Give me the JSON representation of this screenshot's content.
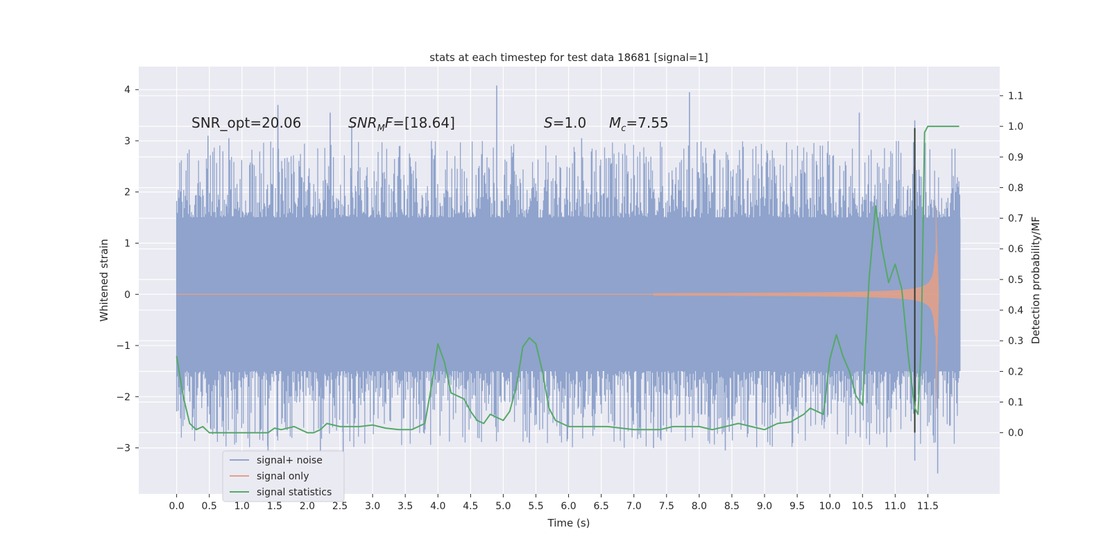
{
  "chart_data": {
    "type": "line",
    "title": "stats at each timestep for test data 18681 [signal=1]",
    "xlabel": "Time (s)",
    "ylabel": "Whitened strain",
    "y2label": "Detection probability/MF",
    "xlim": [
      -0.58,
      12.6
    ],
    "ylim": [
      -3.9,
      4.45
    ],
    "y2lim": [
      -0.2,
      1.195
    ],
    "x_ticks": [
      "0.0",
      "0.5",
      "1.0",
      "1.5",
      "2.0",
      "2.5",
      "3.0",
      "3.5",
      "4.0",
      "4.5",
      "5.0",
      "5.5",
      "6.0",
      "6.5",
      "7.0",
      "7.5",
      "8.0",
      "8.5",
      "9.0",
      "9.5",
      "10.0",
      "10.5",
      "11.0",
      "11.5"
    ],
    "y_ticks": [
      "4",
      "3",
      "2",
      "1",
      "0",
      "−1",
      "−2",
      "−3"
    ],
    "y2_ticks": [
      "1.1",
      "1.0",
      "0.9",
      "0.8",
      "0.7",
      "0.6",
      "0.5",
      "0.4",
      "0.3",
      "0.2",
      "0.1",
      "0.0"
    ],
    "grid": true,
    "legend_position": "lower-left",
    "annotations": {
      "snr_opt": "SNR_opt=20.06",
      "snr_mf": "=[18.64]",
      "s": "=1.0",
      "mc": "=7.55"
    },
    "series": [
      {
        "name": "signal+ noise",
        "color": "#8fa3cc",
        "axis": "left",
        "kind": "noise-band",
        "duration": 12.0,
        "envelope_high": 1.5,
        "envelope_low": -1.5,
        "spikes": [
          {
            "x": 0.48,
            "y": 3.1
          },
          {
            "x": 0.8,
            "y": 3.05
          },
          {
            "x": 1.55,
            "y": 3.7
          },
          {
            "x": 2.35,
            "y": 3.55
          },
          {
            "x": 2.68,
            "y": 3.3
          },
          {
            "x": 4.9,
            "y": 4.08
          },
          {
            "x": 6.2,
            "y": 3.05
          },
          {
            "x": 7.85,
            "y": 3.95
          },
          {
            "x": 10.45,
            "y": 3.55
          },
          {
            "x": 11.3,
            "y": 3.4
          },
          {
            "x": 1.4,
            "y": -3.05
          },
          {
            "x": 2.2,
            "y": -3.25
          },
          {
            "x": 2.55,
            "y": -3.1
          },
          {
            "x": 5.4,
            "y": -2.9
          },
          {
            "x": 7.3,
            "y": -3.0
          },
          {
            "x": 8.4,
            "y": -3.05
          },
          {
            "x": 11.3,
            "y": -3.25
          },
          {
            "x": 11.65,
            "y": -3.5
          }
        ]
      },
      {
        "name": "signal only",
        "color": "#e1a08a",
        "axis": "left",
        "kind": "chirp",
        "t_start": 7.3,
        "t_merger": 11.62,
        "peak_amplitude": 1.9,
        "end_time": 11.67
      },
      {
        "name": "signal statistics",
        "color": "#55a868",
        "axis": "right",
        "kind": "line",
        "x": [
          0.0,
          0.1,
          0.2,
          0.3,
          0.4,
          0.5,
          0.6,
          0.8,
          1.0,
          1.2,
          1.4,
          1.5,
          1.6,
          1.8,
          1.9,
          2.0,
          2.1,
          2.2,
          2.3,
          2.4,
          2.5,
          2.6,
          2.8,
          3.0,
          3.2,
          3.4,
          3.6,
          3.8,
          3.9,
          4.0,
          4.1,
          4.2,
          4.3,
          4.4,
          4.5,
          4.6,
          4.7,
          4.8,
          4.9,
          5.0,
          5.1,
          5.2,
          5.3,
          5.4,
          5.5,
          5.6,
          5.7,
          5.8,
          6.0,
          6.2,
          6.4,
          6.6,
          6.8,
          7.0,
          7.2,
          7.4,
          7.6,
          7.8,
          8.0,
          8.2,
          8.4,
          8.6,
          8.8,
          9.0,
          9.2,
          9.4,
          9.6,
          9.7,
          9.8,
          9.9,
          10.0,
          10.1,
          10.2,
          10.3,
          10.4,
          10.5,
          10.6,
          10.7,
          10.8,
          10.9,
          11.0,
          11.1,
          11.2,
          11.3,
          11.35,
          11.4,
          11.45,
          11.5,
          11.6,
          11.7,
          11.8,
          11.9,
          11.98
        ],
        "values": [
          0.25,
          0.12,
          0.03,
          0.01,
          0.02,
          0.0,
          0.0,
          0.0,
          0.0,
          0.0,
          0.0,
          0.015,
          0.01,
          0.02,
          0.01,
          0.0,
          0.0,
          0.01,
          0.03,
          0.025,
          0.02,
          0.02,
          0.02,
          0.025,
          0.015,
          0.01,
          0.01,
          0.03,
          0.15,
          0.29,
          0.23,
          0.13,
          0.12,
          0.11,
          0.07,
          0.04,
          0.03,
          0.06,
          0.05,
          0.04,
          0.07,
          0.15,
          0.28,
          0.31,
          0.29,
          0.2,
          0.08,
          0.04,
          0.02,
          0.02,
          0.02,
          0.02,
          0.015,
          0.01,
          0.01,
          0.01,
          0.02,
          0.02,
          0.02,
          0.01,
          0.02,
          0.03,
          0.02,
          0.01,
          0.03,
          0.035,
          0.06,
          0.08,
          0.07,
          0.06,
          0.24,
          0.32,
          0.25,
          0.2,
          0.12,
          0.09,
          0.5,
          0.74,
          0.6,
          0.49,
          0.55,
          0.47,
          0.25,
          0.08,
          0.06,
          0.3,
          0.98,
          1.0,
          1.0,
          1.0,
          1.0,
          1.0,
          1.0
        ]
      }
    ],
    "vertical_marker": {
      "x": 11.3,
      "y_top": 3.25,
      "y_bottom": -2.7,
      "color": "#2f3a30"
    }
  }
}
